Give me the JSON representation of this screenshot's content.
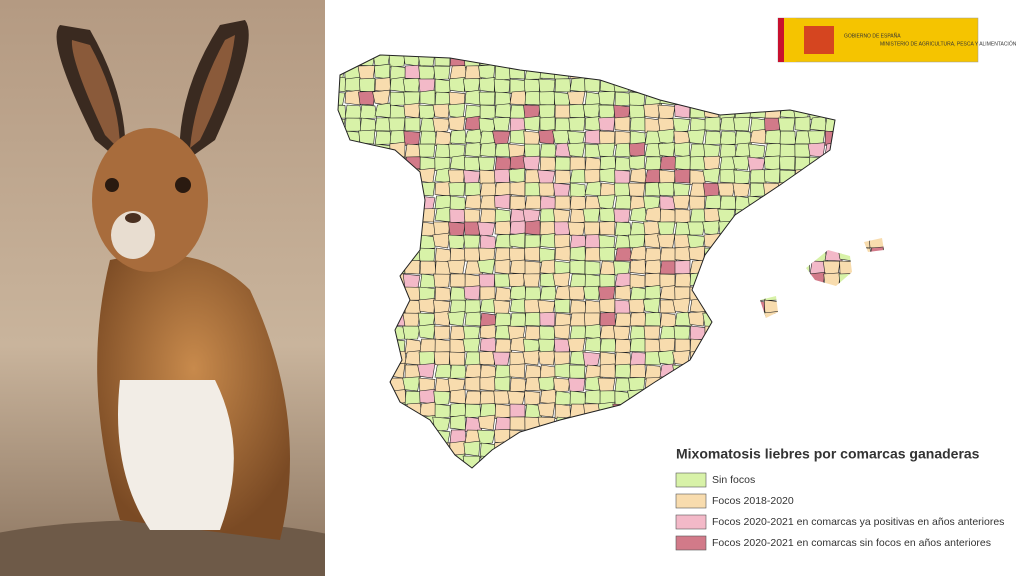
{
  "logo": {
    "government": "GOBIERNO DE ESPAÑA",
    "ministry": "MINISTERIO DE AGRICULTURA, PESCA Y ALIMENTACIÓN"
  },
  "legend": {
    "title": "Mixomatosis liebres por comarcas ganaderas",
    "items": [
      {
        "label": "Sin focos",
        "color": "#d8f2a8"
      },
      {
        "label": "Focos 2018-2020",
        "color": "#f8dcae"
      },
      {
        "label": "Focos 2020-2021 en comarcas ya positivas en años anteriores",
        "color": "#f3b9c8"
      },
      {
        "label": "Focos 2020-2021 en comarcas sin focos en años anteriores",
        "color": "#d27a89"
      }
    ]
  }
}
